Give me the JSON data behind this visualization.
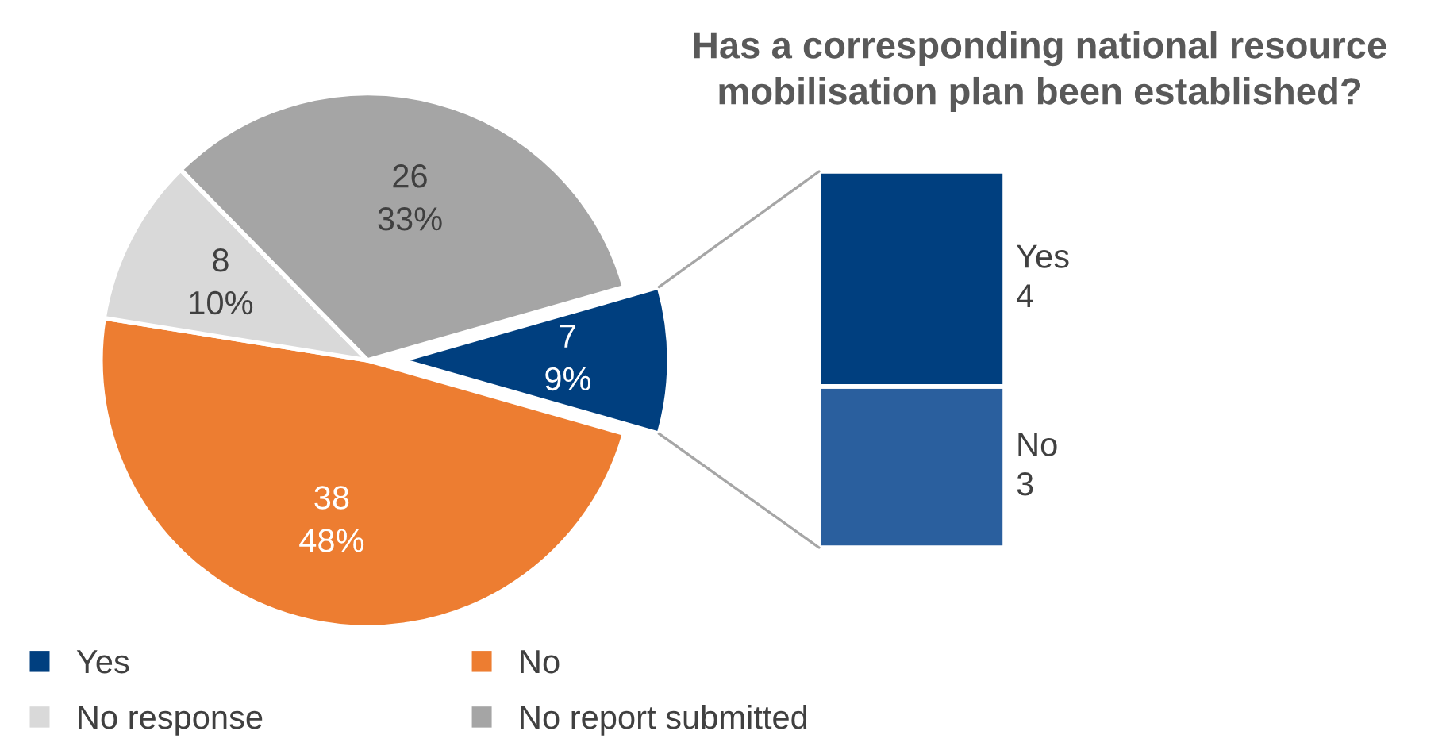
{
  "chart_data": [
    {
      "type": "pie",
      "title": "Has a corresponding national resource\nmobilisation plan been established?",
      "categories": [
        "Yes",
        "No",
        "No response",
        "No report submitted"
      ],
      "values": [
        7,
        38,
        8,
        26
      ],
      "colors": [
        "#003f7f",
        "#ed7d31",
        "#d9d9d9",
        "#a5a5a5"
      ],
      "value_labels": [
        "7\n9%",
        "38\n48%",
        "8\n10%",
        "26\n33%"
      ],
      "legend": "bottom"
    },
    {
      "type": "bar",
      "stacked": true,
      "categories": [
        null
      ],
      "data_labels": true,
      "series": [
        {
          "name": "No",
          "color": "#2a5f9e",
          "values": [
            3
          ]
        },
        {
          "name": "Yes",
          "color": "#003f7f",
          "values": [
            4
          ]
        }
      ]
    }
  ]
}
